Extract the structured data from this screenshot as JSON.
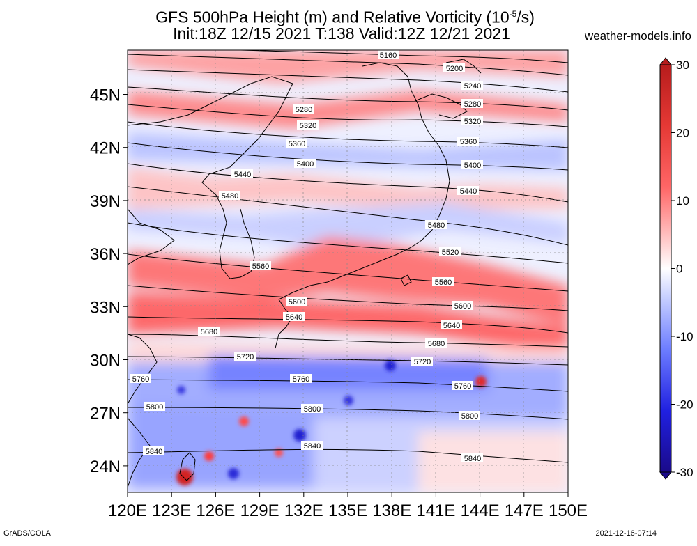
{
  "header": {
    "title_line1": "GFS 500hPa Height (m) and Relative Vorticity (10",
    "title_exp": "-5",
    "title_unit_end": "/s)",
    "title_line2": "Init:18Z 12/15 2021 T:138 Valid:12Z 12/21 2021",
    "site": "weather-models.info"
  },
  "map": {
    "lon_labels": [
      "120E",
      "123E",
      "126E",
      "129E",
      "132E",
      "135E",
      "138E",
      "141E",
      "144E",
      "147E",
      "150E"
    ],
    "lat_labels": [
      "45N",
      "42N",
      "39N",
      "36N",
      "33N",
      "30N",
      "27N",
      "24N"
    ],
    "lat_values": [
      45,
      42,
      39,
      36,
      33,
      30,
      27,
      24
    ],
    "lon_range": [
      120,
      150
    ],
    "lat_range": [
      22.5,
      47.5
    ],
    "contour_levels": [
      "5160",
      "5200",
      "5240",
      "5280",
      "5320",
      "5360",
      "5400",
      "5440",
      "5480",
      "5520",
      "5560",
      "5600",
      "5640",
      "5680",
      "5720",
      "5760",
      "5800",
      "5840"
    ]
  },
  "colorbar": {
    "tick_labels": [
      "30",
      "20",
      "10",
      "0",
      "-10",
      "-20",
      "-30"
    ],
    "colors": [
      "#b71c1c",
      "#e53935",
      "#ff6666",
      "#ffbcbc",
      "#ffffff",
      "#bcc6ff",
      "#6c7cff",
      "#2020e0",
      "#1a0a8a"
    ]
  },
  "footer": {
    "left": "GrADS/COLA",
    "right": "2021-12-16-07:14"
  }
}
